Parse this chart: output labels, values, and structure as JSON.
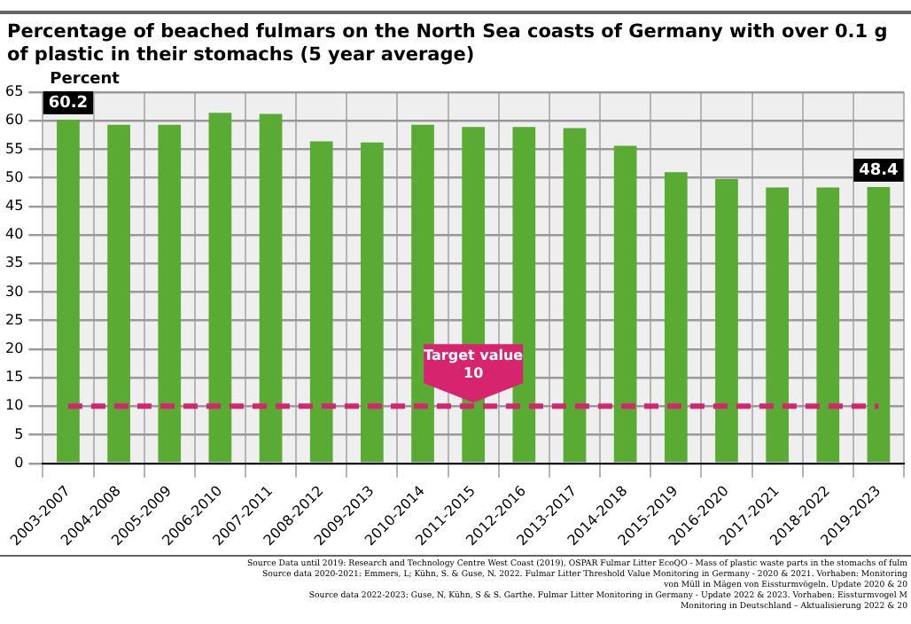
{
  "chart_data": {
    "type": "bar",
    "title": "Percentage of beached fulmars on the North Sea coasts of Germany with over 0.1 g of plastic in their stomachs (5 year average)",
    "ylabel": "Percent",
    "categories": [
      "2003-2007",
      "2004-2008",
      "2005-2009",
      "2006-2010",
      "2007-2011",
      "2008-2012",
      "2009-2013",
      "2010-2014",
      "2011-2015",
      "2012-2016",
      "2013-2017",
      "2014-2018",
      "2015-2019",
      "2016-2020",
      "2017-2021",
      "2018-2022",
      "2019-2023"
    ],
    "values": [
      60.2,
      59.3,
      59.3,
      61.4,
      61.2,
      56.4,
      56.2,
      59.3,
      58.9,
      58.9,
      58.7,
      55.6,
      51.0,
      49.8,
      48.3,
      48.3,
      48.4
    ],
    "value_labels": [
      "60.2",
      null,
      null,
      null,
      null,
      null,
      null,
      null,
      null,
      null,
      null,
      null,
      null,
      null,
      null,
      null,
      "48.4"
    ],
    "color": "#5aab34",
    "ylim": [
      0,
      65
    ],
    "yticks": [
      0,
      5,
      10,
      15,
      20,
      25,
      30,
      35,
      40,
      45,
      50,
      55,
      60,
      65
    ],
    "grid": true,
    "ref_lines": [
      {
        "axis": "y",
        "value": 10,
        "label": "Target value\n10",
        "color": "#d6246e",
        "line_style": "dashed"
      }
    ],
    "annotations": [
      "Source Data until 2019: Research and Technology Centre West Coast (2019), OSPAR Fulmar Litter EcoQO - Mass of plastic waste parts in the stomachs of fulm",
      "Source data 2020-2021: Emmers, L; Kühn, S. & Guse, N. 2022. Fulmar Litter Threshold Value Monitoring in Germany - 2020 & 2021. Vorhaben: Monitoring",
      "von Müll in Mägen von Eissturmvögeln. Update 2020 & 20",
      "Source data 2022-2023: Guse, N, Kühn, S & S. Garthe. Fulmar Litter Monitoring in Germany - Update 2022 & 2023. Vorhaben: Eissturmvogel M",
      "Monitoring in Deutschland – Aktualisierung 2022 & 20"
    ]
  }
}
